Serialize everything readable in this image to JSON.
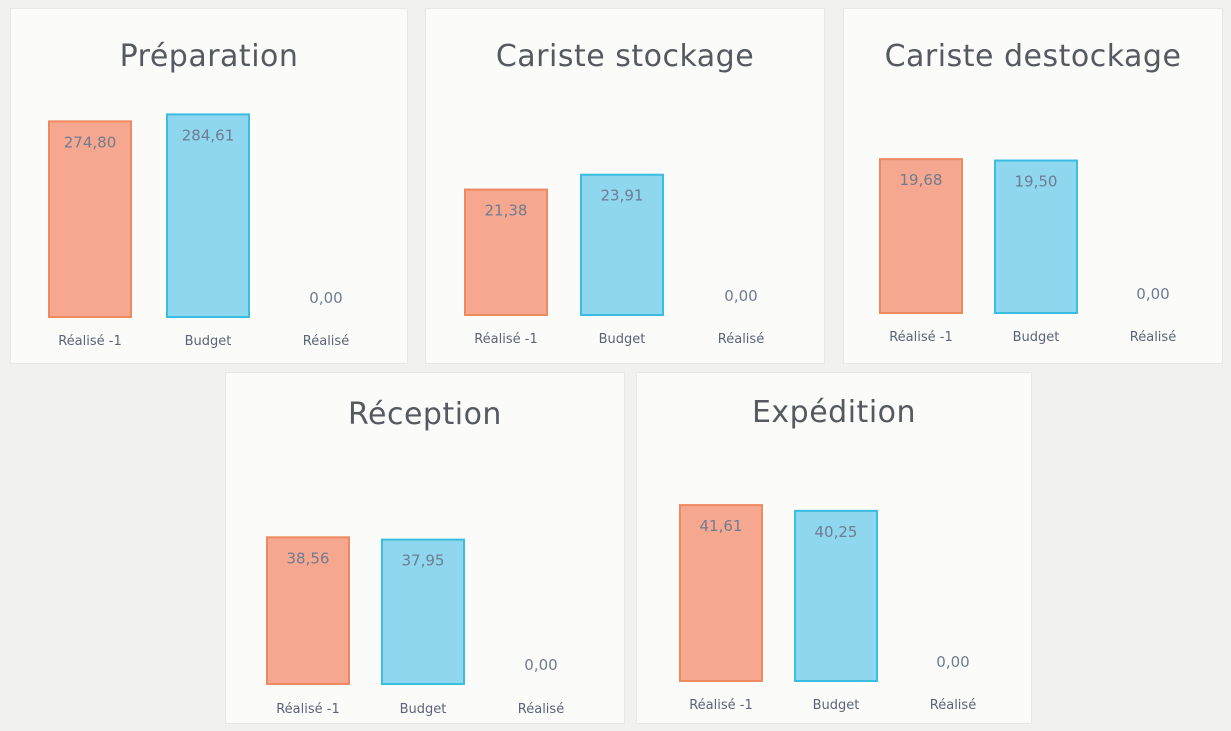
{
  "colors": {
    "prior_fill": "#f6a78f",
    "prior_stroke": "#ee8a60",
    "budget_fill": "#8fd6ef",
    "budget_stroke": "#39bde0",
    "label_text": "#707c92",
    "axis_text": "#5a6478"
  },
  "chart_data": [
    {
      "type": "bar",
      "title": "Préparation",
      "categories": [
        "Réalisé -1",
        "Budget",
        "Réalisé"
      ],
      "values": [
        274.8,
        284.61,
        0.0
      ],
      "value_labels": [
        "274,80",
        "284,61",
        "0,00"
      ],
      "ylim": [
        0,
        295
      ],
      "grid": false
    },
    {
      "type": "bar",
      "title": "Cariste stockage",
      "categories": [
        "Réalisé -1",
        "Budget",
        "Réalisé"
      ],
      "values": [
        21.38,
        23.91,
        0.0
      ],
      "value_labels": [
        "21,38",
        "23,91",
        "0,00"
      ],
      "ylim": [
        0,
        30
      ],
      "grid": false
    },
    {
      "type": "bar",
      "title": "Cariste destockage",
      "categories": [
        "Réalisé -1",
        "Budget",
        "Réalisé"
      ],
      "values": [
        19.68,
        19.5,
        0.0
      ],
      "value_labels": [
        "19,68",
        "19,50",
        "0,00"
      ],
      "ylim": [
        0,
        22
      ],
      "grid": false
    },
    {
      "type": "bar",
      "title": "Réception",
      "categories": [
        "Réalisé -1",
        "Budget",
        "Réalisé"
      ],
      "values": [
        38.56,
        37.95,
        0.0
      ],
      "value_labels": [
        "38,56",
        "37,95",
        "0,00"
      ],
      "ylim": [
        0,
        46
      ],
      "grid": false
    },
    {
      "type": "bar",
      "title": "Expédition",
      "categories": [
        "Réalisé -1",
        "Budget",
        "Réalisé"
      ],
      "values": [
        41.61,
        40.25,
        0.0
      ],
      "value_labels": [
        "41,61",
        "40,25",
        "0,00"
      ],
      "ylim": [
        0,
        44
      ],
      "grid": false
    }
  ]
}
